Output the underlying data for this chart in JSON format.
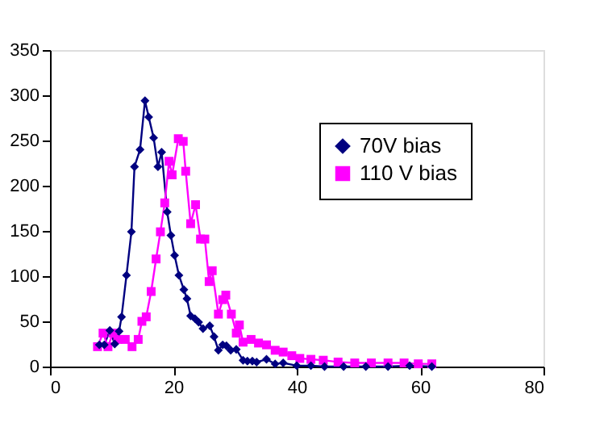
{
  "chart_data": {
    "type": "line",
    "xlim": [
      0,
      80
    ],
    "xticks": [
      0,
      20,
      40,
      60,
      80
    ],
    "ylim": [
      0,
      350
    ],
    "yticks": [
      0,
      50,
      100,
      150,
      200,
      250,
      300,
      350
    ],
    "grid": false,
    "legend": "top right",
    "series": [
      {
        "name": "70V bias",
        "color": "#000080",
        "marker": "diamond",
        "x": [
          8.0,
          8.8,
          9.7,
          10.5,
          11.2,
          11.6,
          12.4,
          13.2,
          13.7,
          14.6,
          15.4,
          16.0,
          16.8,
          17.5,
          18.1,
          19.0,
          19.6,
          20.2,
          20.9,
          21.7,
          22.2,
          22.8,
          23.5,
          24.1,
          24.8,
          25.9,
          26.6,
          27.3,
          28.0,
          28.6,
          29.3,
          30.2,
          31.3,
          32.0,
          32.8,
          33.5,
          35.1,
          36.5,
          37.8,
          40.0,
          42.3,
          44.5,
          47.6,
          51.2,
          54.8,
          58.3,
          61.9
        ],
        "values": [
          24,
          24,
          40,
          25,
          39,
          55,
          101,
          149,
          221,
          240,
          294,
          276,
          253,
          221,
          237,
          171,
          145,
          123,
          101,
          85,
          75,
          56,
          53,
          49,
          42,
          45,
          33,
          18,
          24,
          23,
          18,
          19,
          7,
          6,
          6,
          5,
          8,
          3,
          4,
          1,
          1,
          0,
          0,
          0,
          0,
          1,
          0
        ]
      },
      {
        "name": "110 V bias",
        "color": "#ff00ff",
        "marker": "square",
        "x": [
          7.7,
          8.6,
          9.4,
          10.2,
          11.0,
          12.2,
          13.3,
          14.3,
          14.9,
          15.6,
          16.4,
          17.2,
          17.9,
          18.6,
          19.3,
          19.8,
          20.8,
          21.6,
          22.0,
          22.8,
          23.6,
          24.4,
          25.1,
          25.8,
          26.3,
          27.3,
          28.0,
          28.5,
          29.4,
          30.2,
          30.7,
          31.3,
          32.6,
          33.8,
          35.1,
          36.5,
          37.8,
          39.2,
          40.5,
          42.3,
          44.3,
          46.7,
          49.4,
          52.1,
          54.8,
          57.4,
          59.7,
          61.9
        ],
        "values": [
          22,
          37,
          22,
          37,
          30,
          30,
          22,
          30,
          50,
          55,
          83,
          119,
          149,
          181,
          227,
          212,
          252,
          249,
          216,
          158,
          179,
          141,
          141,
          94,
          106,
          58,
          74,
          79,
          58,
          37,
          46,
          27,
          30,
          26,
          24,
          18,
          16,
          12,
          9,
          8,
          7,
          5,
          4,
          4,
          4,
          4,
          3,
          3
        ]
      }
    ]
  }
}
